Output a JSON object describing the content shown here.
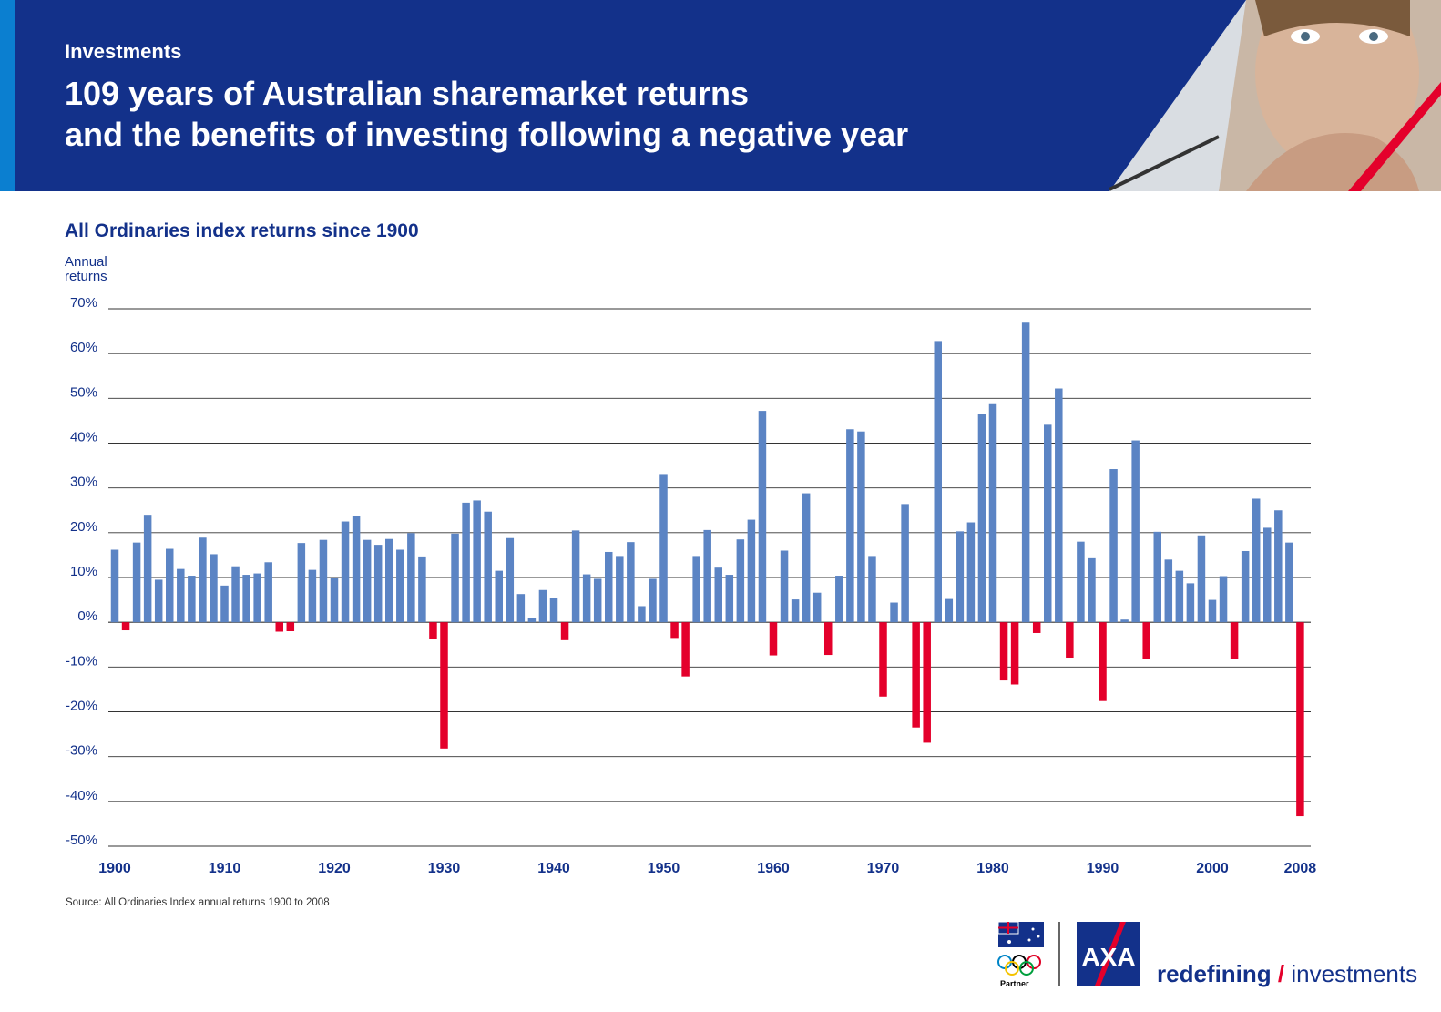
{
  "header": {
    "kicker": "Investments",
    "title_line1": "109 years of Australian sharemarket returns",
    "title_line2": "and the benefits of investing following a negative year",
    "background": "#13318a",
    "accent": "#0b7fd0"
  },
  "chart_data": {
    "type": "bar",
    "title": "All Ordinaries index returns since 1900",
    "ylabel_line1": "Annual",
    "ylabel_line2": "returns",
    "ylim": [
      -50,
      70
    ],
    "yticks": [
      70,
      60,
      50,
      40,
      30,
      20,
      10,
      0,
      -10,
      -20,
      -30,
      -40,
      -50
    ],
    "ytick_labels": [
      "70%",
      "60%",
      "50%",
      "40%",
      "30%",
      "20%",
      "10%",
      "0%",
      "-10%",
      "-20%",
      "-30%",
      "-40%",
      "-50%"
    ],
    "xtick_labels": [
      "1900",
      "1910",
      "1920",
      "1930",
      "1940",
      "1950",
      "1960",
      "1970",
      "1980",
      "1990",
      "2000",
      "2008"
    ],
    "x_start": 1900,
    "x_end": 2008,
    "grid": true,
    "positive_color": "#5b84c4",
    "negative_color": "#e4002b",
    "x": [
      1900,
      1901,
      1902,
      1903,
      1904,
      1905,
      1906,
      1907,
      1908,
      1909,
      1910,
      1911,
      1912,
      1913,
      1914,
      1915,
      1916,
      1917,
      1918,
      1919,
      1920,
      1921,
      1922,
      1923,
      1924,
      1925,
      1926,
      1927,
      1928,
      1929,
      1930,
      1931,
      1932,
      1933,
      1934,
      1935,
      1936,
      1937,
      1938,
      1939,
      1940,
      1941,
      1942,
      1943,
      1944,
      1945,
      1946,
      1947,
      1948,
      1949,
      1950,
      1951,
      1952,
      1953,
      1954,
      1955,
      1956,
      1957,
      1958,
      1959,
      1960,
      1961,
      1962,
      1963,
      1964,
      1965,
      1966,
      1967,
      1968,
      1969,
      1970,
      1971,
      1972,
      1973,
      1974,
      1975,
      1976,
      1977,
      1978,
      1979,
      1980,
      1981,
      1982,
      1983,
      1984,
      1985,
      1986,
      1987,
      1988,
      1989,
      1990,
      1991,
      1992,
      1993,
      1994,
      1995,
      1996,
      1997,
      1998,
      1999,
      2000,
      2001,
      2002,
      2003,
      2004,
      2005,
      2006,
      2007,
      2008
    ],
    "values": [
      16.2,
      -1.8,
      17.8,
      24.0,
      9.5,
      16.4,
      11.9,
      10.4,
      18.9,
      15.2,
      8.2,
      12.5,
      10.6,
      10.9,
      13.4,
      -2.1,
      -2.0,
      17.7,
      11.7,
      18.4,
      10.0,
      22.5,
      23.7,
      18.4,
      17.3,
      18.6,
      16.2,
      19.9,
      14.7,
      -3.7,
      -28.2,
      19.8,
      26.7,
      27.2,
      24.7,
      11.5,
      18.8,
      6.3,
      0.9,
      7.2,
      5.5,
      -4.0,
      20.5,
      10.7,
      9.7,
      15.7,
      14.8,
      17.9,
      3.6,
      9.7,
      33.1,
      -3.5,
      -12.1,
      14.8,
      20.6,
      12.2,
      10.6,
      18.5,
      22.9,
      47.2,
      -7.4,
      16.0,
      5.1,
      28.8,
      6.6,
      -7.3,
      10.4,
      43.1,
      42.6,
      14.8,
      -16.6,
      4.4,
      26.4,
      -23.5,
      -26.9,
      62.8,
      5.2,
      20.3,
      22.3,
      46.5,
      48.9,
      -13.0,
      -13.9,
      66.9,
      -2.4,
      44.1,
      52.2,
      -7.9,
      18.0,
      14.3,
      -17.6,
      34.2,
      0.6,
      40.6,
      -8.3,
      20.2,
      14.0,
      11.5,
      8.7,
      19.4,
      5.0,
      10.3,
      -8.2,
      15.9,
      27.6,
      21.1,
      25.0,
      17.8,
      -43.3
    ]
  },
  "source": "Source: All Ordinaries Index annual returns 1900 to 2008",
  "footer": {
    "partner_label": "Partner",
    "brand_logo_text": "AXA",
    "tagline_bold": "redefining",
    "tagline_slash": "/",
    "tagline_rest": "investments"
  }
}
